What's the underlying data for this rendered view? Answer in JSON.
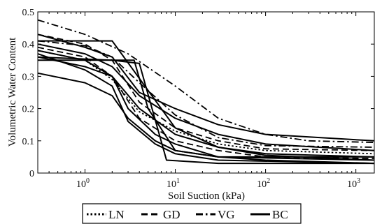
{
  "chart_data": {
    "type": "line",
    "title": "",
    "xlabel": "Soil Suction (kPa)",
    "ylabel": "Volumetric Water Content",
    "xscale": "log",
    "xlim": [
      0.3,
      1600
    ],
    "ylim": [
      0,
      0.5
    ],
    "xticks": [
      {
        "value": 1,
        "base": "10",
        "exp": "0"
      },
      {
        "value": 10,
        "base": "10",
        "exp": "1"
      },
      {
        "value": 100,
        "base": "10",
        "exp": "2"
      },
      {
        "value": 1000,
        "base": "10",
        "exp": "3"
      }
    ],
    "yticks": [
      {
        "value": 0,
        "label": "0"
      },
      {
        "value": 0.1,
        "label": "0.1"
      },
      {
        "value": 0.2,
        "label": "0.2"
      },
      {
        "value": 0.3,
        "label": "0.3"
      },
      {
        "value": 0.4,
        "label": "0.4"
      },
      {
        "value": 0.5,
        "label": "0.5"
      }
    ],
    "grid": false,
    "legend": {
      "placement": "bottom-center-outside",
      "entries": [
        {
          "label": "LN",
          "style": "dotted"
        },
        {
          "label": "GD",
          "style": "dashed"
        },
        {
          "label": "VG",
          "style": "dashdot"
        },
        {
          "label": "BC",
          "style": "solid"
        }
      ]
    },
    "series": [
      {
        "style": "solid",
        "x": [
          0.3,
          2,
          2,
          10,
          30,
          100,
          1600
        ],
        "y": [
          0.41,
          0.41,
          0.41,
          0.14,
          0.08,
          0.055,
          0.04
        ]
      },
      {
        "style": "solid",
        "x": [
          0.3,
          2,
          4,
          8,
          30,
          100,
          1600
        ],
        "y": [
          0.36,
          0.35,
          0.34,
          0.04,
          0.03,
          0.03,
          0.03
        ]
      },
      {
        "style": "solid",
        "x": [
          0.3,
          3.5,
          5,
          10,
          30,
          1600
        ],
        "y": [
          0.35,
          0.35,
          0.2,
          0.07,
          0.05,
          0.05
        ]
      },
      {
        "style": "solid",
        "x": [
          0.3,
          1,
          2,
          4,
          10,
          30,
          100,
          1600
        ],
        "y": [
          0.43,
          0.39,
          0.36,
          0.25,
          0.2,
          0.15,
          0.12,
          0.1
        ]
      },
      {
        "style": "solid",
        "x": [
          0.3,
          1,
          2,
          4,
          10,
          30,
          100,
          1600
        ],
        "y": [
          0.4,
          0.37,
          0.33,
          0.24,
          0.17,
          0.12,
          0.09,
          0.07
        ]
      },
      {
        "style": "solid",
        "x": [
          0.3,
          1,
          2,
          4,
          10,
          30,
          100,
          1600
        ],
        "y": [
          0.38,
          0.35,
          0.3,
          0.2,
          0.12,
          0.08,
          0.06,
          0.05
        ]
      },
      {
        "style": "solid",
        "x": [
          0.3,
          1,
          2,
          3,
          6,
          10,
          30,
          1600
        ],
        "y": [
          0.37,
          0.32,
          0.27,
          0.16,
          0.09,
          0.06,
          0.04,
          0.03
        ]
      },
      {
        "style": "solid",
        "x": [
          0.3,
          1,
          2,
          3,
          6,
          10,
          30,
          1600
        ],
        "y": [
          0.31,
          0.28,
          0.24,
          0.17,
          0.1,
          0.07,
          0.05,
          0.04
        ]
      },
      {
        "style": "solid",
        "x": [
          0.3,
          1,
          2,
          3,
          6,
          10,
          30,
          100,
          1600
        ],
        "y": [
          0.36,
          0.33,
          0.3,
          0.2,
          0.12,
          0.09,
          0.05,
          0.04,
          0.03
        ]
      },
      {
        "style": "dashdot",
        "x": [
          0.3,
          1,
          3,
          10,
          30,
          100,
          300,
          1600
        ],
        "y": [
          0.475,
          0.43,
          0.37,
          0.27,
          0.17,
          0.12,
          0.1,
          0.095
        ]
      },
      {
        "style": "dashdot",
        "x": [
          0.3,
          1,
          2,
          4,
          10,
          30,
          100,
          1600
        ],
        "y": [
          0.41,
          0.395,
          0.36,
          0.28,
          0.18,
          0.11,
          0.085,
          0.08
        ]
      },
      {
        "style": "dashed",
        "x": [
          0.3,
          1,
          2,
          4,
          10,
          30,
          100,
          1600
        ],
        "y": [
          0.43,
          0.4,
          0.35,
          0.22,
          0.14,
          0.1,
          0.075,
          0.07
        ]
      },
      {
        "style": "dashed",
        "x": [
          0.3,
          1,
          2,
          4,
          10,
          30,
          100,
          1600
        ],
        "y": [
          0.39,
          0.36,
          0.3,
          0.17,
          0.1,
          0.07,
          0.05,
          0.045
        ]
      },
      {
        "style": "dotted",
        "x": [
          0.3,
          1,
          2,
          4,
          10,
          30,
          100,
          1600
        ],
        "y": [
          0.38,
          0.35,
          0.29,
          0.19,
          0.13,
          0.09,
          0.07,
          0.06
        ]
      }
    ]
  }
}
